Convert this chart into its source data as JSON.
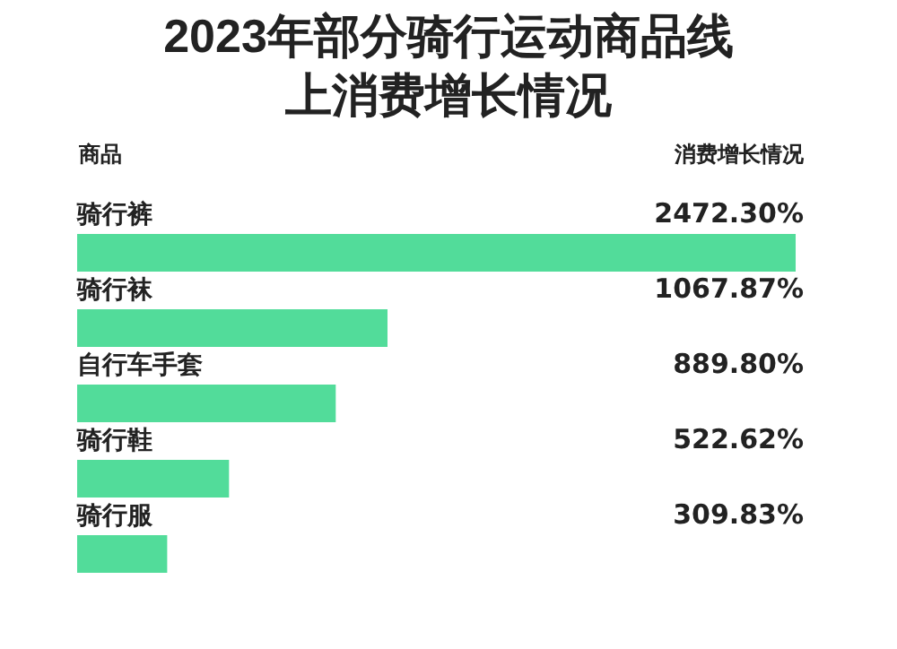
{
  "chart_data": {
    "type": "bar",
    "orientation": "horizontal",
    "title": "2023年部分骑行运动商品线上消费增长情况",
    "ylabel": "商品",
    "xlabel": "消费增长情况",
    "categories": [
      "骑行裤",
      "骑行袜",
      "自行车手套",
      "骑行鞋",
      "骑行服"
    ],
    "values": [
      2472.3,
      1067.87,
      889.8,
      522.62,
      309.83
    ],
    "value_labels": [
      "2472.30%",
      "1067.87%",
      "889.80%",
      "522.62%",
      "309.83%"
    ],
    "color": "#52dc9a"
  }
}
